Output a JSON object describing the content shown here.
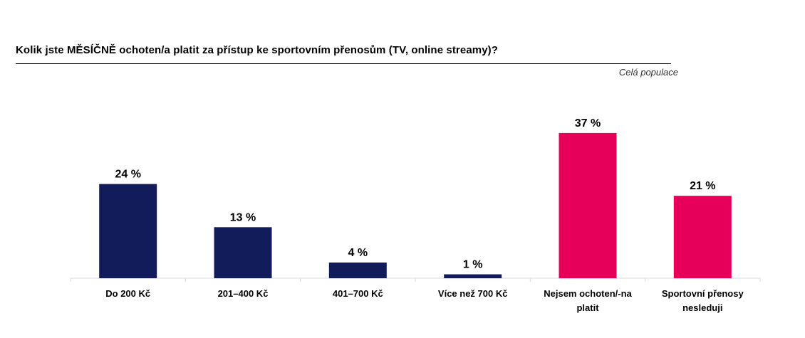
{
  "chart_data": {
    "type": "bar",
    "title": "Kolik jste MĚSÍČNĚ ochoten/a platit za přístup ke sportovním přenosům (TV, online streamy)?",
    "subtitle": "Celá populace",
    "categories": [
      [
        "Do 200 Kč"
      ],
      [
        "201–400 Kč"
      ],
      [
        "401–700 Kč"
      ],
      [
        "Více než 700 Kč"
      ],
      [
        "Nejsem ochoten/-na",
        "platit"
      ],
      [
        "Sportovní přenosy",
        "nesleduji"
      ]
    ],
    "values": [
      24,
      13,
      4,
      1,
      37,
      21
    ],
    "value_labels": [
      "24 %",
      "13 %",
      "4 %",
      "1 %",
      "37 %",
      "21 %"
    ],
    "bar_colors": [
      "#131c5a",
      "#131c5a",
      "#131c5a",
      "#131c5a",
      "#e6005a",
      "#e6005a"
    ],
    "ylim": [
      0,
      40
    ],
    "grid": false,
    "legend": "none"
  }
}
